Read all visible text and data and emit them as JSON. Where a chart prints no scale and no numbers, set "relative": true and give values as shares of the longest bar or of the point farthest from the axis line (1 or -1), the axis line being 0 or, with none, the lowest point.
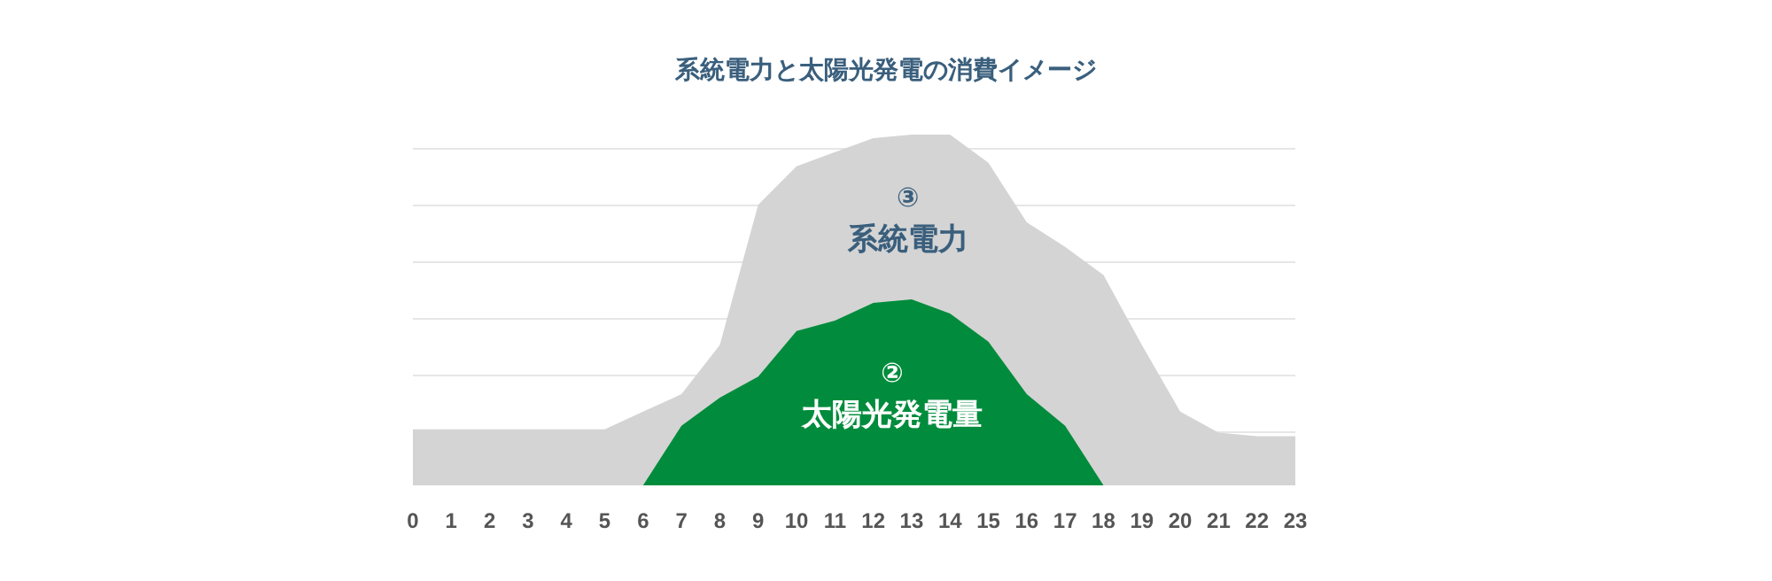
{
  "chart_data": {
    "type": "area",
    "title": "系統電力と太陽光発電の消費イメージ",
    "relative": true,
    "grid": "y",
    "x": [
      0,
      1,
      2,
      3,
      4,
      5,
      6,
      7,
      8,
      9,
      10,
      11,
      12,
      13,
      14,
      15,
      16,
      17,
      18,
      19,
      20,
      21,
      22,
      23
    ],
    "xlim": [
      0,
      23
    ],
    "xticks": [
      0,
      1,
      2,
      3,
      4,
      5,
      6,
      7,
      8,
      9,
      10,
      11,
      12,
      13,
      14,
      15,
      16,
      17,
      18,
      19,
      20,
      21,
      22,
      23
    ],
    "series": [
      {
        "name": "③ 系統電力",
        "color": "#d4d4d4",
        "values": [
          0.16,
          0.16,
          0.16,
          0.16,
          0.16,
          0.16,
          0.21,
          0.26,
          0.4,
          0.8,
          0.91,
          0.95,
          0.99,
          1,
          1,
          0.92,
          0.75,
          0.68,
          0.6,
          0.4,
          0.21,
          0.15,
          0.14,
          0.14
        ]
      },
      {
        "name": "② 太陽光発電量",
        "color": "#008c3c",
        "values": [
          null,
          null,
          null,
          null,
          null,
          null,
          0,
          0.17,
          0.25,
          0.31,
          0.44,
          0.47,
          0.52,
          0.53,
          0.49,
          0.41,
          0.26,
          0.17,
          0,
          null,
          null,
          null,
          null,
          null
        ]
      }
    ]
  }
}
